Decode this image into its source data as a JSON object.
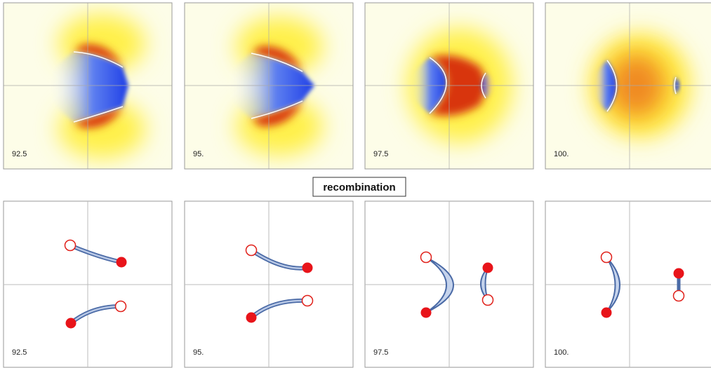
{
  "caption": "recombination",
  "top": {
    "panels": [
      {
        "label": "92.5"
      },
      {
        "label": "95."
      },
      {
        "label": "97.5"
      },
      {
        "label": "100."
      }
    ]
  },
  "bottom": {
    "panels": [
      {
        "label": "92.5"
      },
      {
        "label": "95."
      },
      {
        "label": "97.5"
      },
      {
        "label": "100."
      }
    ]
  }
}
